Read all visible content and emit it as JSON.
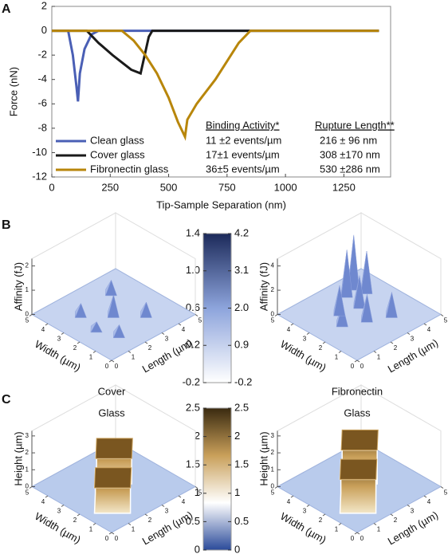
{
  "chart_data": [
    {
      "type": "line",
      "panel": "A",
      "xlabel": "Tip-Sample Separation (nm)",
      "ylabel": "Force (nN)",
      "xlim": [
        0,
        1450
      ],
      "ylim": [
        -12,
        2
      ],
      "xticks": [
        0,
        250,
        500,
        750,
        1000,
        1250
      ],
      "yticks": [
        -12,
        -10,
        -8,
        -6,
        -4,
        -2,
        0,
        2
      ],
      "series": [
        {
          "name": "Clean glass",
          "color": "#4a5fb5",
          "x": [
            0,
            70,
            90,
            105,
            112,
            120,
            140,
            170,
            200,
            1400
          ],
          "values": [
            0,
            0,
            -2,
            -4.5,
            -5.8,
            -3.5,
            -1.5,
            -0.3,
            0,
            0
          ]
        },
        {
          "name": "Cover glass",
          "color": "#1a1a1a",
          "x": [
            0,
            150,
            200,
            260,
            300,
            340,
            380,
            415,
            430,
            500,
            1400
          ],
          "values": [
            0,
            0,
            -1,
            -2,
            -2.6,
            -3.2,
            -3.5,
            -0.5,
            0,
            0,
            0
          ]
        },
        {
          "name": "Fibronectin glass",
          "color": "#b8860b",
          "x": [
            0,
            300,
            350,
            400,
            450,
            500,
            540,
            570,
            580,
            620,
            700,
            750,
            800,
            850,
            1400
          ],
          "values": [
            0,
            0,
            -0.8,
            -2,
            -3.5,
            -5.5,
            -7.5,
            -8.7,
            -7.3,
            -6,
            -4,
            -2.5,
            -1,
            0,
            0
          ]
        }
      ],
      "table": {
        "headers": [
          "Binding Activity*",
          "Rupture Length**"
        ],
        "rows": [
          [
            "11 ±2 events/µm",
            "216 ±  96 nm"
          ],
          [
            "17±1 events/µm",
            "308 ±170 nm"
          ],
          [
            "36±5 events/µm",
            "530 ±286 nm"
          ]
        ]
      }
    },
    {
      "type": "surface",
      "panel": "B",
      "colorbar": {
        "lim": [
          -0.2,
          1.4
        ],
        "ticks": [
          1.4,
          {
            "value": 1,
            "label": "1.0"
          },
          0.6,
          0.2,
          -0.2
        ],
        "lim2": [
          -0.2,
          4.2
        ],
        "ticks2": [
          4.2,
          3.1,
          {
            "value": 2,
            "label": "2.0"
          },
          0.9,
          -0.2
        ],
        "colors": [
          "#ffffff",
          "#8da4dc",
          "#1c2a5a"
        ]
      },
      "plots": [
        {
          "zlabel": "Affinity (fJ)",
          "zlim": [
            0,
            2.3
          ],
          "zticks": [
            0,
            1,
            2
          ],
          "xlabel": "Width (µm)",
          "xticks": [
            0,
            1,
            2,
            3,
            4,
            5
          ],
          "ylabel": "Length (µm)",
          "yticks": [
            0,
            1,
            2,
            3,
            4,
            5
          ]
        },
        {
          "zlabel": "Affinity (fJ)",
          "zlim": [
            0,
            4.6
          ],
          "zticks": [
            0,
            2,
            4
          ],
          "xlabel": "Width (µm)",
          "xticks": [
            0,
            1,
            2,
            3,
            4,
            5
          ],
          "ylabel": "Length (µm)",
          "yticks": [
            0,
            1,
            2,
            3,
            4,
            5
          ]
        }
      ]
    },
    {
      "type": "surface",
      "panel": "C",
      "colorbar": {
        "lim": [
          0,
          2.5
        ],
        "ticks": [
          2.5,
          2,
          1.5,
          1,
          0.5,
          0
        ],
        "lim2": [
          0,
          2.5
        ],
        "ticks2": [
          2.5,
          2,
          1.5,
          1,
          0.5,
          0
        ],
        "colors": [
          "#2a4a9a",
          "#ffffff",
          "#c9a05a",
          "#3a2a10"
        ]
      },
      "plots": [
        {
          "title_lines": [
            "Cover",
            "Glass"
          ],
          "zlabel": "Height (µm)",
          "zlim": [
            0,
            3.3
          ],
          "zticks": [
            0,
            1,
            2,
            3
          ],
          "xlabel": "Width (µm)",
          "xticks": [
            0,
            1,
            2,
            3,
            4,
            5
          ],
          "ylabel": "Length (µm)",
          "yticks": [
            0,
            1,
            2,
            3,
            4,
            5
          ]
        },
        {
          "title_lines": [
            "Fibronectin",
            "Glass"
          ],
          "zlabel": "Height (µm)",
          "zlim": [
            0,
            3.3
          ],
          "zticks": [
            0,
            1,
            2,
            3
          ],
          "xlabel": "Width (µm)",
          "xticks": [
            0,
            1,
            2,
            3,
            4,
            5
          ],
          "ylabel": "Length (µm)",
          "yticks": [
            0,
            1,
            2,
            3,
            4,
            5
          ]
        }
      ]
    }
  ]
}
